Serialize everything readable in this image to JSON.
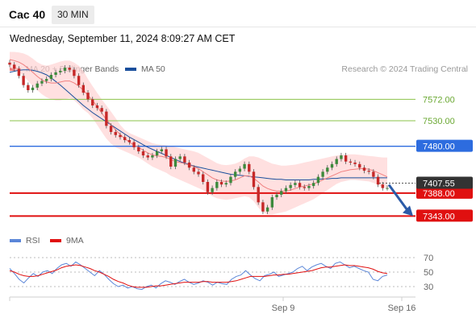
{
  "header": {
    "symbol": "Cac 40",
    "timeframe": "30 MIN"
  },
  "datetime": "Wednesday, September 11, 2024 8:09:27 AM CET",
  "legend": {
    "ma20_label": "MA 20 + Bollinger Bands",
    "ma50_label": "MA 50",
    "credit": "Research © 2024 Trading Central"
  },
  "rsi_legend": {
    "rsi_label": "RSI",
    "ma9_label": "9MA"
  },
  "colors": {
    "ma20": "#f08080",
    "band": "#ffd6d6",
    "ma50": "#1a4f9c",
    "up": "#3c8a3c",
    "down": "#c62828",
    "green_level": "#8bc34a",
    "blue_level": "#2d6cdf",
    "red_level": "#e01010",
    "current": "#333333",
    "arrow": "#2b5ba8",
    "rsi": "#5b86d8",
    "rsi_ma": "#e01010"
  },
  "chart_data": {
    "type": "line",
    "title": "Cac 40",
    "timeframe": "30 MIN",
    "price_range": [
      7320,
      7620
    ],
    "x_ticks": [
      "Sep 9",
      "Sep 16"
    ],
    "price_levels": [
      {
        "value": 7572.0,
        "label": "7572.00",
        "kind": "resistance",
        "color": "green"
      },
      {
        "value": 7530.0,
        "label": "7530.00",
        "kind": "resistance",
        "color": "green"
      },
      {
        "value": 7480.0,
        "label": "7480.00",
        "kind": "pivot",
        "color": "blue"
      },
      {
        "value": 7388.0,
        "label": "7388.00",
        "kind": "support",
        "color": "red"
      },
      {
        "value": 7343.0,
        "label": "7343.00",
        "kind": "support",
        "color": "red"
      }
    ],
    "current_price": {
      "value": 7407.55,
      "label": "7407.55"
    },
    "close_series": [
      7640,
      7632,
      7618,
      7600,
      7590,
      7595,
      7603,
      7608,
      7612,
      7620,
      7625,
      7628,
      7634,
      7630,
      7618,
      7600,
      7585,
      7572,
      7560,
      7555,
      7548,
      7520,
      7508,
      7502,
      7498,
      7492,
      7488,
      7478,
      7470,
      7462,
      7458,
      7462,
      7470,
      7474,
      7460,
      7440,
      7455,
      7460,
      7448,
      7438,
      7430,
      7425,
      7410,
      7390,
      7398,
      7410,
      7405,
      7408,
      7420,
      7430,
      7436,
      7445,
      7430,
      7400,
      7370,
      7352,
      7360,
      7380,
      7385,
      7392,
      7398,
      7404,
      7408,
      7400,
      7398,
      7402,
      7408,
      7420,
      7430,
      7438,
      7445,
      7455,
      7462,
      7450,
      7448,
      7445,
      7438,
      7432,
      7430,
      7420,
      7405,
      7398,
      7398
    ],
    "ma20_series": [
      7650,
      7648,
      7645,
      7640,
      7633,
      7625,
      7617,
      7610,
      7606,
      7604,
      7604,
      7606,
      7608,
      7608,
      7604,
      7598,
      7590,
      7580,
      7570,
      7558,
      7545,
      7532,
      7522,
      7512,
      7503,
      7495,
      7488,
      7482,
      7478,
      7472,
      7467,
      7463,
      7461,
      7460,
      7458,
      7454,
      7450,
      7448,
      7446,
      7443,
      7440,
      7436,
      7430,
      7424,
      7418,
      7414,
      7412,
      7411,
      7412,
      7414,
      7418,
      7422,
      7422,
      7417,
      7410,
      7402,
      7397,
      7394,
      7392,
      7392,
      7392,
      7394,
      7397,
      7400,
      7402,
      7404,
      7406,
      7410,
      7414,
      7418,
      7422,
      7426,
      7430,
      7432,
      7434,
      7435,
      7436,
      7436,
      7435,
      7432,
      7428,
      7424,
      7420
    ],
    "band_upper": [
      7665,
      7665,
      7664,
      7662,
      7658,
      7652,
      7645,
      7640,
      7638,
      7640,
      7643,
      7646,
      7648,
      7648,
      7644,
      7638,
      7628,
      7612,
      7598,
      7585,
      7572,
      7560,
      7548,
      7535,
      7522,
      7512,
      7506,
      7502,
      7498,
      7494,
      7490,
      7486,
      7484,
      7483,
      7482,
      7480,
      7478,
      7476,
      7474,
      7472,
      7470,
      7467,
      7462,
      7457,
      7452,
      7447,
      7444,
      7443,
      7444,
      7446,
      7450,
      7456,
      7460,
      7460,
      7458,
      7454,
      7450,
      7446,
      7444,
      7442,
      7442,
      7443,
      7444,
      7446,
      7448,
      7450,
      7452,
      7454,
      7456,
      7458,
      7460,
      7462,
      7463,
      7464,
      7464,
      7464,
      7463,
      7462,
      7461,
      7460,
      7459,
      7458,
      7458
    ],
    "band_lower": [
      7635,
      7630,
      7625,
      7618,
      7608,
      7598,
      7590,
      7582,
      7576,
      7572,
      7570,
      7570,
      7572,
      7574,
      7570,
      7562,
      7552,
      7545,
      7535,
      7522,
      7508,
      7495,
      7485,
      7478,
      7474,
      7470,
      7466,
      7462,
      7458,
      7452,
      7446,
      7440,
      7436,
      7432,
      7428,
      7422,
      7418,
      7414,
      7410,
      7406,
      7402,
      7398,
      7394,
      7388,
      7382,
      7378,
      7376,
      7375,
      7376,
      7378,
      7380,
      7382,
      7380,
      7372,
      7360,
      7350,
      7346,
      7346,
      7348,
      7350,
      7352,
      7356,
      7360,
      7364,
      7368,
      7372,
      7376,
      7382,
      7388,
      7394,
      7400,
      7406,
      7410,
      7412,
      7414,
      7414,
      7413,
      7412,
      7411,
      7408,
      7404,
      7400,
      7396
    ],
    "ma50_series": [
      7625,
      7627,
      7629,
      7630,
      7630,
      7629,
      7627,
      7624,
      7620,
      7614,
      7607,
      7600,
      7592,
      7584,
      7576,
      7568,
      7560,
      7553,
      7546,
      7540,
      7534,
      7528,
      7522,
      7516,
      7510,
      7504,
      7498,
      7493,
      7488,
      7483,
      7478,
      7474,
      7470,
      7466,
      7462,
      7458,
      7454,
      7450,
      7447,
      7444,
      7441,
      7439,
      7437,
      7435,
      7433,
      7431,
      7429,
      7427,
      7425,
      7424,
      7423,
      7422,
      7421,
      7420,
      7419,
      7418,
      7417,
      7416,
      7415,
      7415,
      7414,
      7414,
      7414,
      7414,
      7414,
      7414,
      7415,
      7415,
      7416,
      7416,
      7417,
      7417,
      7418,
      7418,
      7418,
      7418,
      7418,
      7418,
      7418,
      7418,
      7418,
      7418,
      7418
    ],
    "rsi": {
      "levels": [
        70,
        50,
        30
      ],
      "level_labels": [
        "70",
        "50",
        "30"
      ],
      "rsi_series": [
        55,
        48,
        40,
        35,
        42,
        48,
        44,
        50,
        52,
        48,
        55,
        60,
        62,
        58,
        64,
        60,
        55,
        50,
        45,
        52,
        47,
        40,
        34,
        30,
        32,
        28,
        30,
        27,
        26,
        30,
        32,
        28,
        34,
        38,
        36,
        33,
        37,
        40,
        36,
        33,
        35,
        38,
        36,
        32,
        36,
        34,
        33,
        40,
        44,
        46,
        52,
        46,
        41,
        38,
        45,
        47,
        50,
        44,
        46,
        48,
        50,
        55,
        58,
        52,
        57,
        60,
        62,
        58,
        55,
        62,
        64,
        60,
        56,
        58,
        55,
        52,
        50,
        40,
        38,
        44,
        46
      ],
      "ma9_series": [
        52,
        50,
        47,
        45,
        44,
        44,
        45,
        47,
        49,
        51,
        53,
        56,
        58,
        59,
        60,
        59,
        57,
        55,
        52,
        50,
        47,
        44,
        40,
        37,
        35,
        32,
        30,
        29,
        29,
        29,
        30,
        31,
        31,
        32,
        33,
        34,
        35,
        36,
        36,
        36,
        36,
        37,
        37,
        36,
        36,
        36,
        36,
        37,
        38,
        40,
        42,
        44,
        44,
        44,
        44,
        45,
        46,
        46,
        47,
        47,
        48,
        49,
        50,
        51,
        52,
        54,
        56,
        57,
        57,
        58,
        59,
        60,
        59,
        59,
        58,
        57,
        56,
        54,
        51,
        49,
        48
      ]
    }
  }
}
